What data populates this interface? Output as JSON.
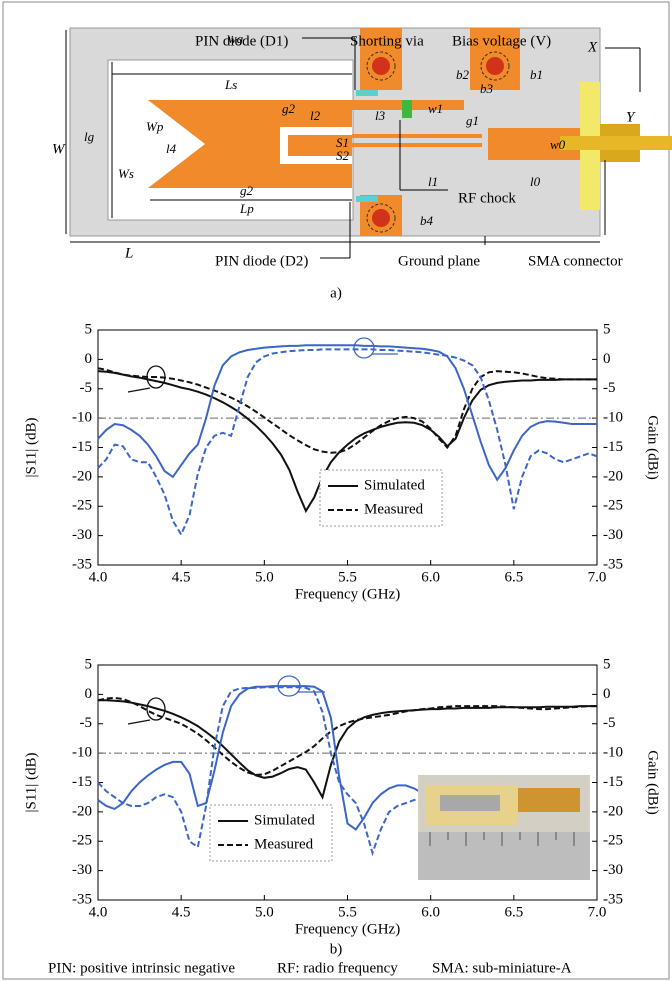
{
  "diagram": {
    "labels": [
      "PIN diode (D1)",
      "Shorting via",
      "Bias voltage (V)",
      "X",
      "Y",
      "wg",
      "Ls",
      "W",
      "lg",
      "Wp",
      "l4",
      "Ws",
      "g2",
      "l2",
      "g2",
      "Lp",
      "S1",
      "S2",
      "l3",
      "w1",
      "b2",
      "b3",
      "b1",
      "g1",
      "w0",
      "l1",
      "l0",
      "RF chock",
      "b4",
      "L",
      "PIN diode (D2)",
      "Ground plane",
      "SMA connector"
    ],
    "caption": "a)"
  },
  "chart_data": [
    {
      "type": "line",
      "xlabel": "Frequency (GHz)",
      "ylabel": "|S11| (dB)",
      "y2label": "Gain (dBi)",
      "x": [
        4,
        4.05,
        4.1,
        4.15,
        4.2,
        4.25,
        4.3,
        4.35,
        4.4,
        4.45,
        4.5,
        4.55,
        4.6,
        4.65,
        4.7,
        4.75,
        4.8,
        4.85,
        4.9,
        4.95,
        5,
        5.05,
        5.1,
        5.15,
        5.2,
        5.25,
        5.3,
        5.35,
        5.4,
        5.45,
        5.5,
        5.55,
        5.6,
        5.65,
        5.7,
        5.75,
        5.8,
        5.85,
        5.9,
        5.95,
        6,
        6.05,
        6.1,
        6.15,
        6.2,
        6.25,
        6.3,
        6.35,
        6.4,
        6.45,
        6.5,
        6.55,
        6.6,
        6.65,
        6.7,
        6.75,
        6.8,
        6.85,
        6.9,
        6.95,
        7
      ],
      "xlim": [
        4,
        7
      ],
      "xticks": [
        {
          "value": 4,
          "label": "4.0"
        },
        {
          "value": 4.5,
          "label": "4.5"
        },
        {
          "value": 5,
          "label": "5.0"
        },
        {
          "value": 5.5,
          "label": "5.5"
        },
        {
          "value": 6,
          "label": "6.0"
        },
        {
          "value": 6.5,
          "label": "6.5"
        },
        {
          "value": 7,
          "label": "7.0"
        }
      ],
      "ylim": [
        -35,
        5
      ],
      "yticks": [
        -35,
        -30,
        -25,
        -20,
        -15,
        -10,
        -5,
        0,
        5
      ],
      "y2lim": [
        -35,
        5
      ],
      "y2ticks": [
        -35,
        -30,
        -25,
        -20,
        -15,
        -10,
        -5,
        0,
        5
      ],
      "reference_line": -10,
      "legend": [
        "Simulated",
        "Measured"
      ],
      "series": [
        {
          "color": "#111111",
          "dash": "solid",
          "values": [
            -2.0,
            -2.1,
            -2.3,
            -2.6,
            -2.9,
            -3.1,
            -3.4,
            -3.7,
            -4.0,
            -4.4,
            -4.8,
            -5.1,
            -5.5,
            -6.0,
            -6.6,
            -7.3,
            -8.1,
            -9.0,
            -10.1,
            -11.3,
            -12.7,
            -14.3,
            -16.2,
            -18.8,
            -22.5,
            -25.8,
            -23.5,
            -20.0,
            -17.5,
            -15.8,
            -14.5,
            -13.4,
            -12.6,
            -12.0,
            -11.5,
            -11.1,
            -10.8,
            -10.7,
            -10.8,
            -11.2,
            -12.0,
            -13.2,
            -14.8,
            -13.5,
            -10.0,
            -7.0,
            -5.2,
            -4.4,
            -4.0,
            -3.8,
            -3.7,
            -3.6,
            -3.6,
            -3.5,
            -3.5,
            -3.5,
            -3.4,
            -3.4,
            -3.4,
            -3.4,
            -3.4
          ]
        },
        {
          "color": "#111111",
          "dash": "dashed",
          "values": [
            -1.5,
            -1.8,
            -2.2,
            -2.6,
            -2.8,
            -2.9,
            -3.0,
            -3.0,
            -3.1,
            -3.3,
            -3.6,
            -3.9,
            -4.3,
            -4.8,
            -5.3,
            -5.9,
            -6.5,
            -7.2,
            -8.0,
            -8.9,
            -9.9,
            -10.9,
            -11.9,
            -12.9,
            -13.8,
            -14.6,
            -15.3,
            -15.7,
            -15.9,
            -15.8,
            -15.3,
            -14.4,
            -13.3,
            -12.2,
            -11.2,
            -10.5,
            -10.0,
            -9.8,
            -10.0,
            -10.6,
            -11.8,
            -13.5,
            -15.0,
            -13.0,
            -8.5,
            -5.0,
            -3.0,
            -2.2,
            -2.0,
            -2.1,
            -2.2,
            -2.4,
            -2.7,
            -3.0,
            -3.2,
            -3.3,
            -3.4,
            -3.4,
            -3.4,
            -3.4,
            -3.4
          ]
        },
        {
          "color": "#3b66c8",
          "dash": "solid",
          "axis": "y2",
          "values": [
            -13.5,
            -12.0,
            -11.0,
            -11.2,
            -12.0,
            -13.0,
            -14.5,
            -16.5,
            -19.0,
            -20.0,
            -18.0,
            -16.0,
            -14.5,
            -10.0,
            -4.5,
            -1.0,
            0.5,
            1.2,
            1.6,
            1.8,
            2.0,
            2.1,
            2.2,
            2.3,
            2.3,
            2.4,
            2.4,
            2.4,
            2.4,
            2.4,
            2.4,
            2.4,
            2.3,
            2.3,
            2.2,
            2.2,
            2.1,
            2.0,
            1.9,
            1.8,
            1.6,
            1.3,
            0.5,
            -1.5,
            -5.0,
            -9.5,
            -14.0,
            -18.0,
            -20.5,
            -18.5,
            -15.5,
            -13.0,
            -11.5,
            -10.8,
            -10.5,
            -10.6,
            -10.8,
            -11.0,
            -11.0,
            -11.0,
            -11.0
          ]
        },
        {
          "color": "#3b66c8",
          "dash": "dashed",
          "axis": "y2",
          "values": [
            -18.5,
            -17.0,
            -14.5,
            -14.8,
            -17.0,
            -17.5,
            -17.5,
            -20.0,
            -23.0,
            -27.5,
            -29.8,
            -26.5,
            -19.5,
            -15.0,
            -13.0,
            -12.5,
            -13.0,
            -8.0,
            -3.0,
            -0.5,
            0.5,
            1.0,
            1.2,
            1.4,
            1.5,
            1.6,
            1.6,
            1.7,
            1.7,
            1.7,
            1.7,
            1.7,
            1.7,
            1.7,
            1.6,
            1.6,
            1.5,
            1.4,
            1.3,
            1.2,
            1.0,
            0.8,
            0.6,
            0.3,
            -0.2,
            -1.0,
            -3.0,
            -7.0,
            -12.0,
            -18.0,
            -25.5,
            -20.0,
            -16.5,
            -15.5,
            -16.0,
            -17.0,
            -17.5,
            -17.0,
            -16.5,
            -16.0,
            -16.5
          ]
        }
      ]
    },
    {
      "type": "line",
      "xlabel": "Frequency (GHz)",
      "ylabel": "|S11| (dB)",
      "y2label": "Gain (dBi)",
      "x": [
        4,
        4.05,
        4.1,
        4.15,
        4.2,
        4.25,
        4.3,
        4.35,
        4.4,
        4.45,
        4.5,
        4.55,
        4.6,
        4.65,
        4.7,
        4.75,
        4.8,
        4.85,
        4.9,
        4.95,
        5,
        5.05,
        5.1,
        5.15,
        5.2,
        5.25,
        5.3,
        5.35,
        5.4,
        5.45,
        5.5,
        5.55,
        5.6,
        5.65,
        5.7,
        5.75,
        5.8,
        5.85,
        5.9,
        5.95,
        6,
        6.05,
        6.1,
        6.15,
        6.2,
        6.25,
        6.3,
        6.35,
        6.4,
        6.45,
        6.5,
        6.55,
        6.6,
        6.65,
        6.7,
        6.75,
        6.8,
        6.85,
        6.9,
        6.95,
        7
      ],
      "xlim": [
        4,
        7
      ],
      "xticks": [
        {
          "value": 4,
          "label": "4.0"
        },
        {
          "value": 4.5,
          "label": "4.5"
        },
        {
          "value": 5,
          "label": "5.0"
        },
        {
          "value": 5.5,
          "label": "5.5"
        },
        {
          "value": 6,
          "label": "6.0"
        },
        {
          "value": 6.5,
          "label": "6.5"
        },
        {
          "value": 7,
          "label": "7.0"
        }
      ],
      "ylim": [
        -35,
        5
      ],
      "yticks": [
        -35,
        -30,
        -25,
        -20,
        -15,
        -10,
        -5,
        0,
        5
      ],
      "y2lim": [
        -35,
        5
      ],
      "y2ticks": [
        -35,
        -30,
        -25,
        -20,
        -15,
        -10,
        -5,
        0,
        5
      ],
      "reference_line": -10,
      "legend": [
        "Simulated",
        "Measured"
      ],
      "caption": "b)",
      "series": [
        {
          "color": "#111111",
          "dash": "solid",
          "values": [
            -1.0,
            -1.0,
            -1.1,
            -1.2,
            -1.4,
            -1.7,
            -2.0,
            -2.4,
            -2.8,
            -3.3,
            -3.9,
            -4.6,
            -5.4,
            -6.4,
            -7.5,
            -8.8,
            -10.2,
            -11.6,
            -12.9,
            -13.8,
            -14.2,
            -14.0,
            -13.4,
            -12.7,
            -12.4,
            -12.8,
            -15.0,
            -17.5,
            -12.0,
            -8.0,
            -5.8,
            -4.6,
            -3.9,
            -3.5,
            -3.2,
            -3.0,
            -2.9,
            -2.8,
            -2.7,
            -2.6,
            -2.5,
            -2.5,
            -2.4,
            -2.4,
            -2.3,
            -2.3,
            -2.3,
            -2.3,
            -2.2,
            -2.2,
            -2.2,
            -2.2,
            -2.2,
            -2.2,
            -2.1,
            -2.1,
            -2.1,
            -2.1,
            -2.0,
            -2.0,
            -2.0
          ]
        },
        {
          "color": "#111111",
          "dash": "dashed",
          "values": [
            -1.0,
            -0.7,
            -0.6,
            -0.8,
            -1.3,
            -2.0,
            -2.8,
            -3.5,
            -4.0,
            -4.5,
            -5.0,
            -5.8,
            -6.7,
            -7.8,
            -9.0,
            -10.3,
            -11.5,
            -12.5,
            -13.3,
            -13.7,
            -13.6,
            -13.0,
            -12.2,
            -11.4,
            -10.6,
            -9.8,
            -8.8,
            -7.5,
            -6.3,
            -5.4,
            -4.8,
            -4.4,
            -4.1,
            -3.9,
            -3.7,
            -3.5,
            -3.2,
            -2.9,
            -2.7,
            -2.5,
            -2.4,
            -2.2,
            -2.1,
            -2.0,
            -2.0,
            -2.0,
            -2.0,
            -2.0,
            -2.0,
            -2.1,
            -2.2,
            -2.3,
            -2.4,
            -2.5,
            -2.5,
            -2.4,
            -2.3,
            -2.2,
            -2.1,
            -2.0,
            -2.0
          ]
        },
        {
          "color": "#3b66c8",
          "dash": "solid",
          "axis": "y2",
          "values": [
            -18.0,
            -19.0,
            -19.5,
            -18.5,
            -16.5,
            -15.0,
            -13.8,
            -12.8,
            -12.0,
            -11.5,
            -11.5,
            -13.5,
            -19.0,
            -18.5,
            -13.0,
            -6.5,
            -2.0,
            0.0,
            1.0,
            1.3,
            1.3,
            1.4,
            1.4,
            1.4,
            1.4,
            1.4,
            1.3,
            0.5,
            -4.0,
            -14.0,
            -22.0,
            -23.0,
            -21.0,
            -18.5,
            -17.0,
            -16.0,
            -15.5,
            -15.5,
            -16.0,
            -16.8,
            -17.0,
            null,
            null,
            null,
            null,
            null,
            null,
            null,
            null,
            null,
            null,
            null,
            null,
            null,
            null,
            null,
            null,
            null,
            null,
            null,
            null
          ]
        },
        {
          "color": "#3b66c8",
          "dash": "dashed",
          "axis": "y2",
          "values": [
            -15.0,
            -16.5,
            -17.5,
            -18.5,
            -19.0,
            -19.0,
            -18.5,
            -17.5,
            -17.0,
            -17.5,
            -20.0,
            -25.0,
            -26.0,
            -19.0,
            -9.0,
            -2.0,
            0.5,
            1.0,
            1.1,
            1.1,
            1.2,
            1.2,
            1.2,
            1.2,
            1.2,
            1.1,
            0.5,
            -3.0,
            -10.0,
            -15.0,
            -17.0,
            -18.5,
            -22.0,
            -27.0,
            -23.0,
            -20.0,
            -19.0,
            -18.5,
            -18.0,
            -17.5,
            -17.5,
            null,
            null,
            null,
            null,
            null,
            null,
            null,
            null,
            null,
            null,
            null,
            null,
            null,
            null,
            null,
            null,
            null,
            null,
            null,
            null
          ]
        }
      ]
    }
  ],
  "footnote": [
    "PIN: positive intrinsic negative",
    "RF:  radio frequency",
    "SMA: sub-miniature-A"
  ]
}
